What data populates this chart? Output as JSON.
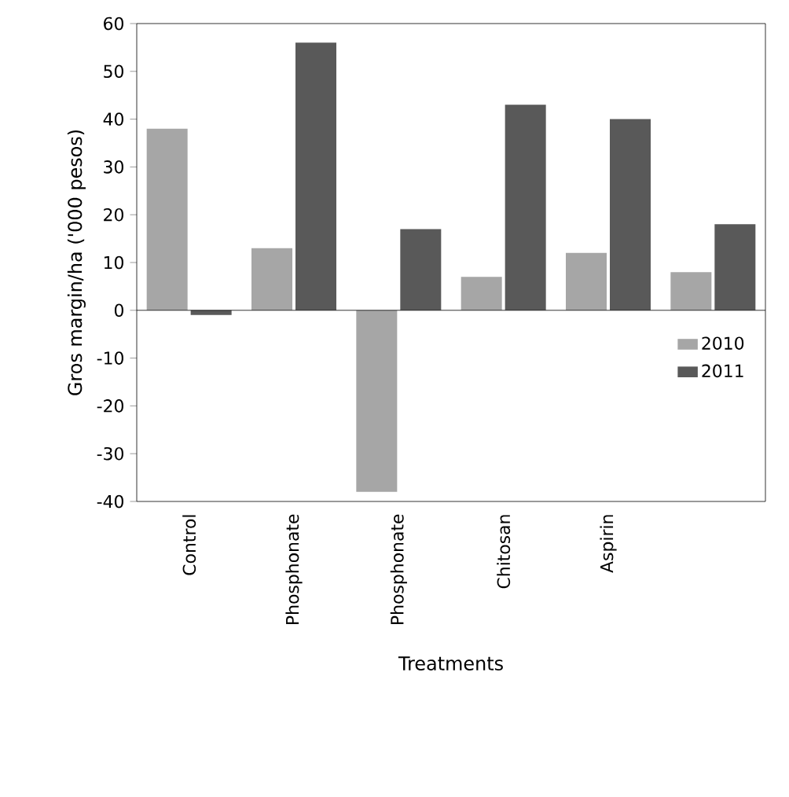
{
  "chart_data": {
    "type": "bar",
    "xlabel": "Treatments",
    "ylabel": "Gros margin/ha ('000 pesos)",
    "categories": [
      "Control",
      "Phosphonate",
      "Phosphonate",
      "Chitosan",
      "Aspirin",
      null
    ],
    "series": [
      {
        "name": "2010",
        "color": "#a6a6a6",
        "values": [
          38,
          13,
          -38,
          7,
          12,
          8
        ]
      },
      {
        "name": "2011",
        "color": "#595959",
        "values": [
          -1,
          56,
          17,
          43,
          40,
          18
        ]
      }
    ],
    "ylim": [
      -40,
      60
    ],
    "yticks": [
      -40,
      -30,
      -20,
      -10,
      0,
      10,
      20,
      30,
      40,
      50,
      60
    ],
    "legend": "right",
    "grid": false,
    "ref_lines": [
      {
        "axis": "y",
        "value": 0
      }
    ]
  }
}
